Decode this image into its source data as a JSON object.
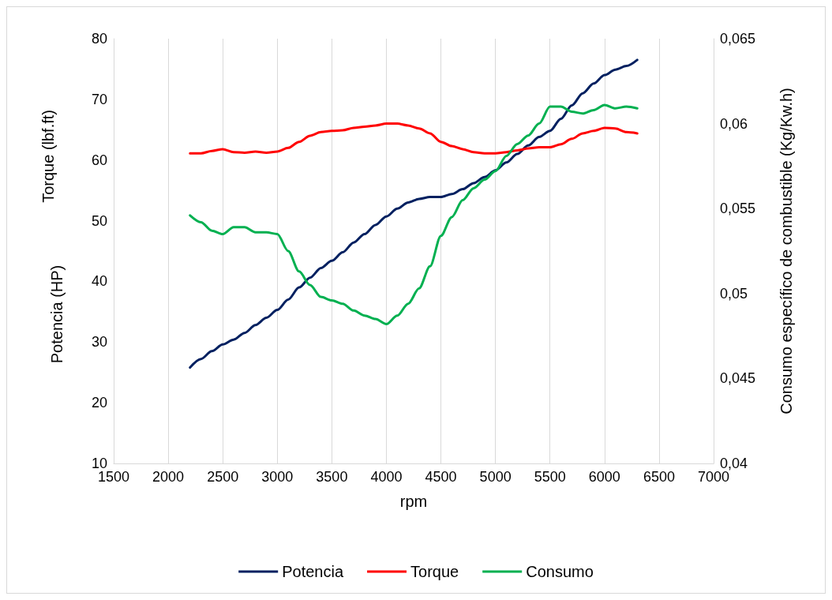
{
  "chart_data": {
    "type": "line",
    "xlabel": "rpm",
    "ylabel": "Potencia (HP)",
    "y2label": "Consumo específico de combustible (Kg/Kw.h)",
    "annotations": [
      "Torque (lbf.ft)"
    ],
    "x": [
      2200,
      2300,
      2400,
      2500,
      2600,
      2700,
      2800,
      2900,
      3000,
      3100,
      3200,
      3300,
      3400,
      3500,
      3600,
      3700,
      3800,
      3900,
      4000,
      4100,
      4200,
      4300,
      4400,
      4500,
      4600,
      4700,
      4800,
      4900,
      5000,
      5100,
      5200,
      5300,
      5400,
      5500,
      5600,
      5700,
      5800,
      5900,
      6000,
      6100,
      6200,
      6300
    ],
    "series": [
      {
        "name": "Potencia",
        "color": "#002060",
        "values": [
          25.8,
          27.2,
          28.5,
          29.6,
          30.4,
          31.5,
          32.8,
          34,
          35.3,
          37,
          39,
          40.6,
          42.2,
          43.4,
          44.8,
          46.4,
          47.8,
          49.3,
          50.7,
          52,
          53,
          53.6,
          53.9,
          53.9,
          54.4,
          55.2,
          56.2,
          57.2,
          58.3,
          59.6,
          61,
          62.4,
          63.8,
          64.8,
          66.8,
          69,
          71,
          72.6,
          74,
          74.9,
          75.5,
          76.5
        ]
      },
      {
        "name": "Torque",
        "color": "#ff0000",
        "values": [
          61.1,
          61.1,
          61.5,
          61.8,
          61.3,
          61.2,
          61.4,
          61.2,
          61.4,
          62,
          63,
          64,
          64.6,
          64.8,
          64.9,
          65.3,
          65.5,
          65.7,
          66,
          66,
          65.7,
          65.2,
          64.4,
          63,
          62.3,
          61.8,
          61.3,
          61.1,
          61.1,
          61.3,
          61.6,
          61.9,
          62.1,
          62.1,
          62.6,
          63.5,
          64.4,
          64.8,
          65.3,
          65.2,
          64.6,
          64.4
        ]
      },
      {
        "name": "Consumo",
        "color": "#00b050",
        "axis": "y2",
        "values": [
          0.0546,
          0.0542,
          0.0537,
          0.0535,
          0.0539,
          0.0539,
          0.0536,
          0.0536,
          0.0535,
          0.0525,
          0.0513,
          0.0505,
          0.0498,
          0.0496,
          0.0494,
          0.049,
          0.0487,
          0.0485,
          0.0482,
          0.0487,
          0.0494,
          0.0503,
          0.0516,
          0.0534,
          0.0545,
          0.0555,
          0.0562,
          0.0567,
          0.0572,
          0.0581,
          0.0588,
          0.0593,
          0.06,
          0.061,
          0.061,
          0.0607,
          0.0606,
          0.0608,
          0.0611,
          0.0609,
          0.061,
          0.0609
        ]
      }
    ],
    "xlim": [
      1500,
      7000
    ],
    "xticks": [
      1500,
      2000,
      2500,
      3000,
      3500,
      4000,
      4500,
      5000,
      5500,
      6000,
      6500,
      7000
    ],
    "ylim": [
      10,
      80
    ],
    "yticks": [
      10,
      20,
      30,
      40,
      50,
      60,
      70,
      80
    ],
    "y2lim": [
      0.04,
      0.065
    ],
    "y2ticks": [
      {
        "value": 0.04,
        "label": "0,04"
      },
      {
        "value": 0.045,
        "label": "0,045"
      },
      {
        "value": 0.05,
        "label": "0,05"
      },
      {
        "value": 0.055,
        "label": "0,055"
      },
      {
        "value": 0.06,
        "label": "0,06"
      },
      {
        "value": 0.065,
        "label": "0,065"
      }
    ],
    "grid": "x",
    "legend": "bottom",
    "marker": "none",
    "line_style": "solid"
  }
}
